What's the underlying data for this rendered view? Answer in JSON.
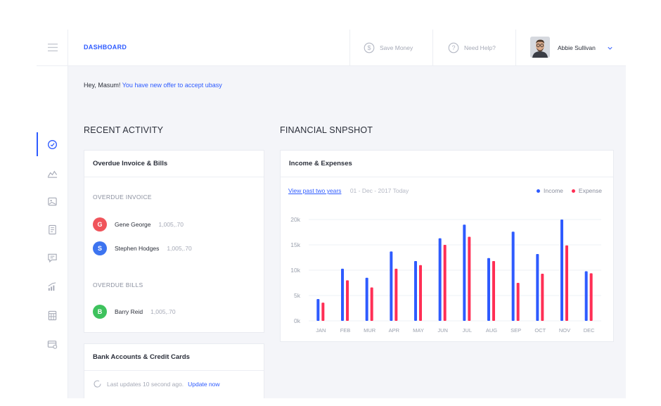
{
  "header": {
    "title": "DASHBOARD",
    "save_money": "Save Money",
    "need_help": "Need Help?",
    "user_name": "Abbie Sullivan"
  },
  "greeting": {
    "prefix": "Hey, Masum!",
    "link": "You have new offer to accept ubasy"
  },
  "recent_activity": {
    "title": "RECENT ACTIVITY",
    "card_title": "Overdue Invoice & Bills",
    "overdue_invoice_label": "OVERDUE INVOICE",
    "invoices": [
      {
        "initial": "G",
        "name": "Gene George",
        "amount": "1,005,.70",
        "color": "#f0545b"
      },
      {
        "initial": "S",
        "name": "Stephen Hodges",
        "amount": "1,005,.70",
        "color": "#3d74f0"
      }
    ],
    "overdue_bills_label": "OVERDUE BILLS",
    "bills": [
      {
        "initial": "B",
        "name": "Barry Reid",
        "amount": "1,005,.70",
        "color": "#3ec25d"
      }
    ]
  },
  "bank": {
    "title": "Bank Accounts & Credit Cards",
    "status": "Last updates 10 second ago.",
    "update_link": "Update now"
  },
  "financial": {
    "title": "FINANCIAL SNPSHOT",
    "card_title": "Income & Expenses",
    "range_link": "View past two years",
    "range_date": "01 - Dec - 2017 Today"
  },
  "colors": {
    "accent": "#2e5bff",
    "income": "#2e5bff",
    "expense": "#ff2f55"
  },
  "chart_data": {
    "type": "bar",
    "categories": [
      "JAN",
      "FEB",
      "MUR",
      "APR",
      "MAY",
      "JUN",
      "JUL",
      "AUG",
      "SEP",
      "OCT",
      "NOV",
      "DEC"
    ],
    "series": [
      {
        "name": "Income",
        "values": [
          4300,
          10300,
          8500,
          13700,
          11800,
          16300,
          19000,
          12400,
          17600,
          13200,
          20000,
          9800
        ]
      },
      {
        "name": "Expense",
        "values": [
          3600,
          8000,
          6600,
          10300,
          11000,
          15000,
          16600,
          11800,
          7500,
          9300,
          14900,
          9400
        ]
      }
    ],
    "y_ticks": [
      "0k",
      "5k",
      "10k",
      "15k",
      "20k"
    ],
    "ylim": [
      0,
      20000
    ],
    "grid": true,
    "legend": "top-right"
  }
}
